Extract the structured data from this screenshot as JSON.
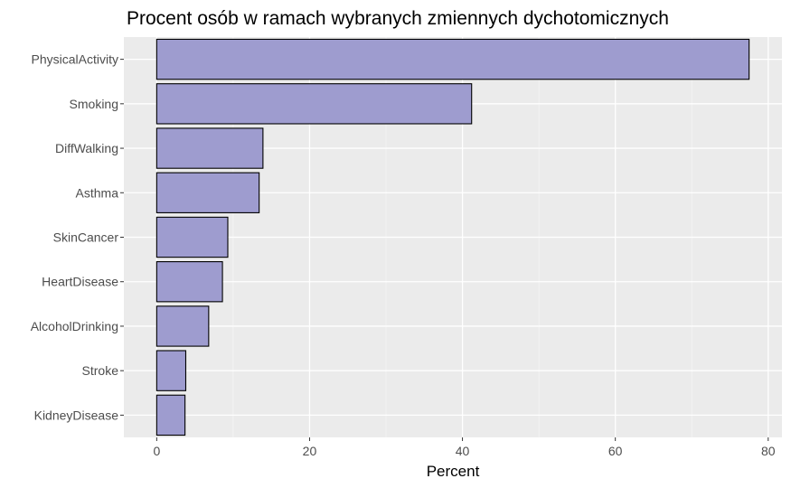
{
  "chart_data": {
    "type": "bar",
    "orientation": "horizontal",
    "title": "Procent osób w ramach wybranych zmiennych dychotomicznych",
    "xlabel": "Percent",
    "ylabel": "",
    "categories": [
      "PhysicalActivity",
      "Smoking",
      "DiffWalking",
      "Asthma",
      "SkinCancer",
      "HeartDisease",
      "AlcoholDrinking",
      "Stroke",
      "KidneyDisease"
    ],
    "values": [
      77.5,
      41.2,
      13.9,
      13.4,
      9.3,
      8.6,
      6.8,
      3.8,
      3.7
    ],
    "xlim": [
      -4.3,
      81.8
    ],
    "x_ticks": [
      0,
      20,
      40,
      60,
      80
    ],
    "x_tick_labels": [
      "0",
      "20",
      "40",
      "60",
      "80"
    ],
    "grid": true,
    "legend": "none",
    "colors": {
      "bar_fill": "#9e9ccf",
      "bar_stroke": "#000000",
      "panel_background": "#ebebeb",
      "grid_major": "#ffffff",
      "grid_minor": "#f5f5f5"
    }
  }
}
